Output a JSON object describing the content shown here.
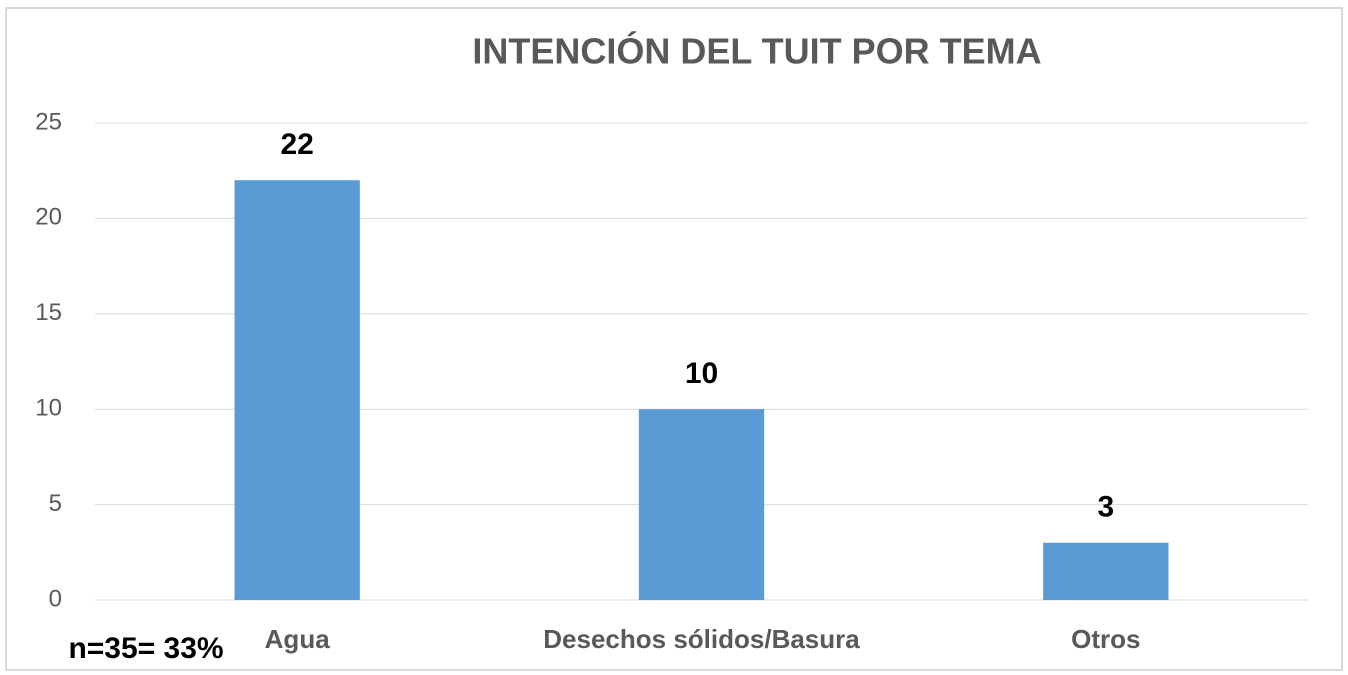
{
  "chart_data": {
    "type": "bar",
    "title": "INTENCIÓN DEL TUIT POR TEMA",
    "categories": [
      "Agua",
      "Desechos sólidos/Basura",
      "Otros"
    ],
    "values": [
      22,
      10,
      3
    ],
    "color": "#5b9bd5",
    "ylim": [
      0,
      25
    ],
    "yticks": [
      0,
      5,
      10,
      15,
      20,
      25
    ],
    "grid": true,
    "annotation": "n=35= 33%"
  }
}
